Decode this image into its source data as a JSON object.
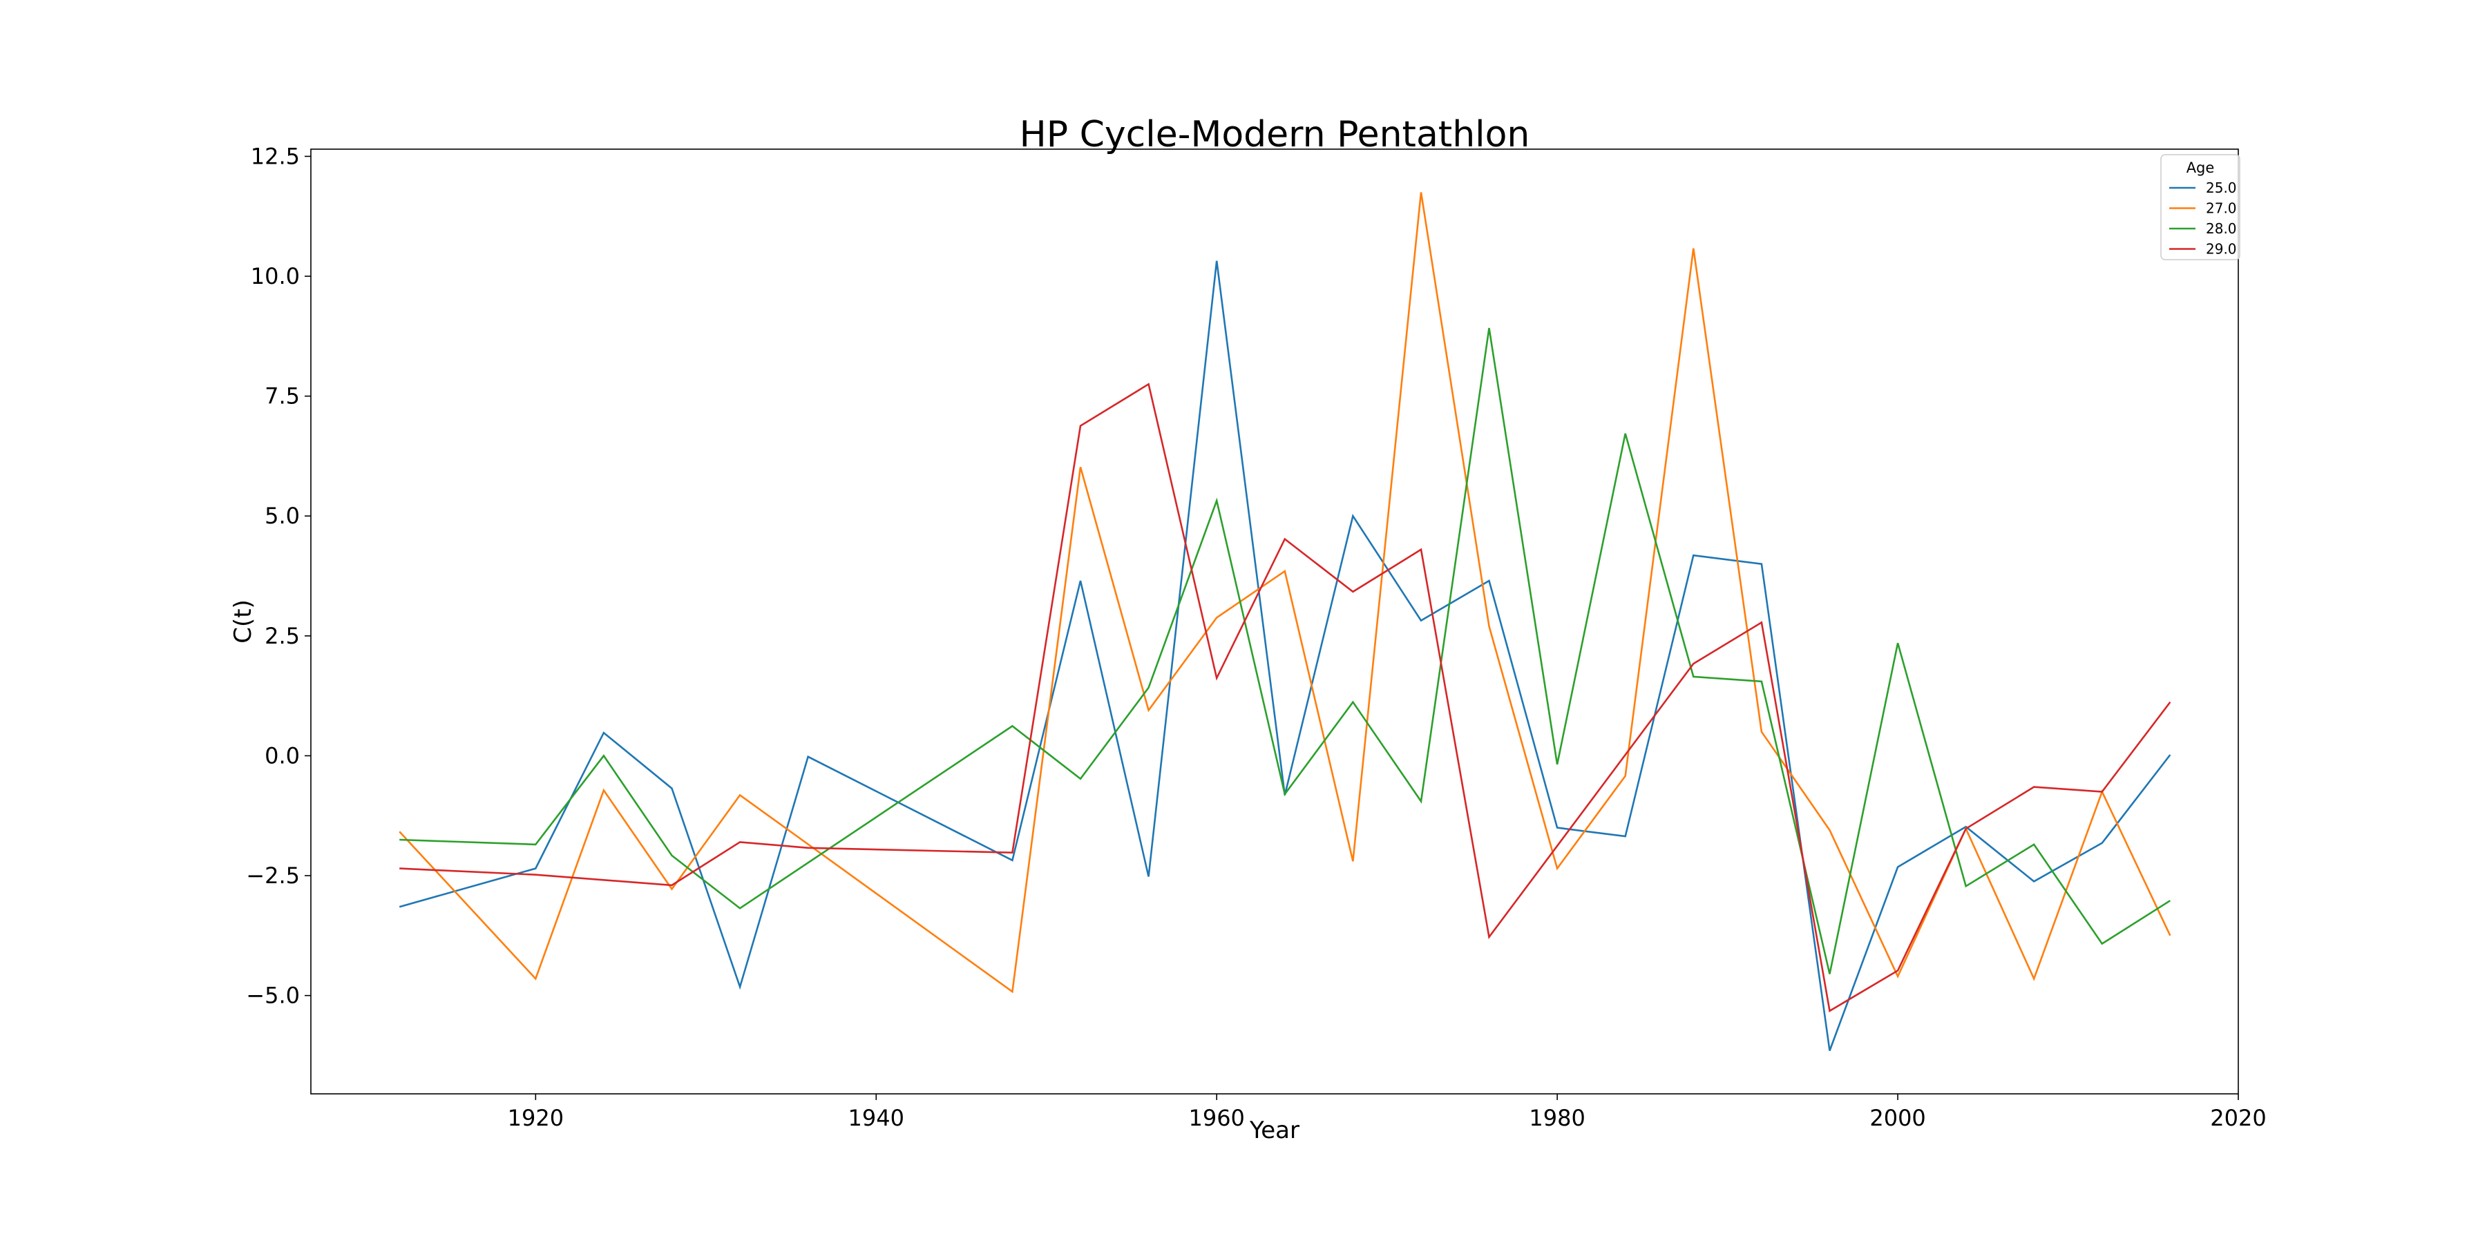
{
  "chart_data": {
    "type": "line",
    "title": "HP Cycle-Modern Pentathlon",
    "xlabel": "Year",
    "ylabel": "C(t)",
    "xlim": [
      1906.8,
      2020
    ],
    "ylim": [
      -7.05,
      12.65
    ],
    "xticks": [
      1920,
      1940,
      1960,
      1980,
      2000,
      2020
    ],
    "yticks": [
      -5.0,
      -2.5,
      0.0,
      2.5,
      5.0,
      7.5,
      10.0,
      12.5
    ],
    "ytick_labels": [
      "−5.0",
      "−2.5",
      "0.0",
      "2.5",
      "5.0",
      "7.5",
      "10.0",
      "12.5"
    ],
    "grid": false,
    "legend": {
      "title": "Age",
      "position": "top-right"
    },
    "x": [
      1912,
      1920,
      1924,
      1928,
      1932,
      1936,
      1948,
      1952,
      1956,
      1960,
      1964,
      1968,
      1972,
      1976,
      1980,
      1984,
      1988,
      1992,
      1996,
      2000,
      2004,
      2008,
      2012,
      2016
    ],
    "series": [
      {
        "name": "25.0",
        "color": "#1f77b4",
        "points": [
          [
            1912,
            -3.15
          ],
          [
            1920,
            -2.35
          ],
          [
            1924,
            0.48
          ],
          [
            1928,
            -0.68
          ],
          [
            1932,
            -4.82
          ],
          [
            1936,
            -0.02
          ],
          [
            1948,
            -2.18
          ],
          [
            1952,
            3.65
          ],
          [
            1956,
            -2.52
          ],
          [
            1960,
            10.32
          ],
          [
            1964,
            -0.82
          ],
          [
            1968,
            5.0
          ],
          [
            1972,
            2.82
          ],
          [
            1976,
            3.65
          ],
          [
            1980,
            -1.5
          ],
          [
            1984,
            -1.68
          ],
          [
            1988,
            4.18
          ],
          [
            1992,
            4.0
          ],
          [
            1996,
            -6.15
          ],
          [
            2000,
            -2.32
          ],
          [
            2004,
            -1.48
          ],
          [
            2008,
            -2.62
          ],
          [
            2012,
            -1.82
          ],
          [
            2016,
            0.02
          ]
        ]
      },
      {
        "name": "27.0",
        "color": "#ff7f0e",
        "points": [
          [
            1912,
            -1.58
          ],
          [
            1920,
            -4.65
          ],
          [
            1924,
            -0.72
          ],
          [
            1928,
            -2.78
          ],
          [
            1932,
            -0.82
          ],
          [
            1948,
            -4.92
          ],
          [
            1952,
            6.02
          ],
          [
            1956,
            0.95
          ],
          [
            1960,
            2.88
          ],
          [
            1964,
            3.85
          ],
          [
            1968,
            -2.2
          ],
          [
            1972,
            11.75
          ],
          [
            1976,
            2.7
          ],
          [
            1980,
            -2.35
          ],
          [
            1984,
            -0.42
          ],
          [
            1988,
            10.58
          ],
          [
            1992,
            0.5
          ],
          [
            1996,
            -1.55
          ],
          [
            2000,
            -4.6
          ],
          [
            2004,
            -1.52
          ],
          [
            2008,
            -4.65
          ],
          [
            2012,
            -0.75
          ],
          [
            2016,
            -3.75
          ]
        ]
      },
      {
        "name": "28.0",
        "color": "#2ca02c",
        "points": [
          [
            1912,
            -1.75
          ],
          [
            1920,
            -1.85
          ],
          [
            1924,
            0.0
          ],
          [
            1928,
            -2.08
          ],
          [
            1932,
            -3.18
          ],
          [
            1948,
            0.62
          ],
          [
            1952,
            -0.48
          ],
          [
            1956,
            1.42
          ],
          [
            1960,
            5.32
          ],
          [
            1964,
            -0.8
          ],
          [
            1968,
            1.12
          ],
          [
            1972,
            -0.95
          ],
          [
            1976,
            8.92
          ],
          [
            1980,
            -0.18
          ],
          [
            1984,
            6.72
          ],
          [
            1988,
            1.65
          ],
          [
            1992,
            1.55
          ],
          [
            1996,
            -4.55
          ],
          [
            2000,
            2.35
          ],
          [
            2004,
            -2.72
          ],
          [
            2008,
            -1.85
          ],
          [
            2012,
            -3.92
          ],
          [
            2016,
            -3.02
          ]
        ]
      },
      {
        "name": "29.0",
        "color": "#d62728",
        "points": [
          [
            1912,
            -2.35
          ],
          [
            1920,
            -2.48
          ],
          [
            1928,
            -2.7
          ],
          [
            1932,
            -1.8
          ],
          [
            1936,
            -1.92
          ],
          [
            1948,
            -2.02
          ],
          [
            1952,
            6.88
          ],
          [
            1956,
            7.75
          ],
          [
            1960,
            1.62
          ],
          [
            1964,
            4.52
          ],
          [
            1968,
            3.42
          ],
          [
            1972,
            4.3
          ],
          [
            1976,
            -3.78
          ],
          [
            1988,
            1.92
          ],
          [
            1992,
            2.78
          ],
          [
            1996,
            -5.32
          ],
          [
            2000,
            -4.48
          ],
          [
            2004,
            -1.52
          ],
          [
            2008,
            -0.65
          ],
          [
            2012,
            -0.75
          ],
          [
            2016,
            1.12
          ]
        ]
      }
    ]
  }
}
